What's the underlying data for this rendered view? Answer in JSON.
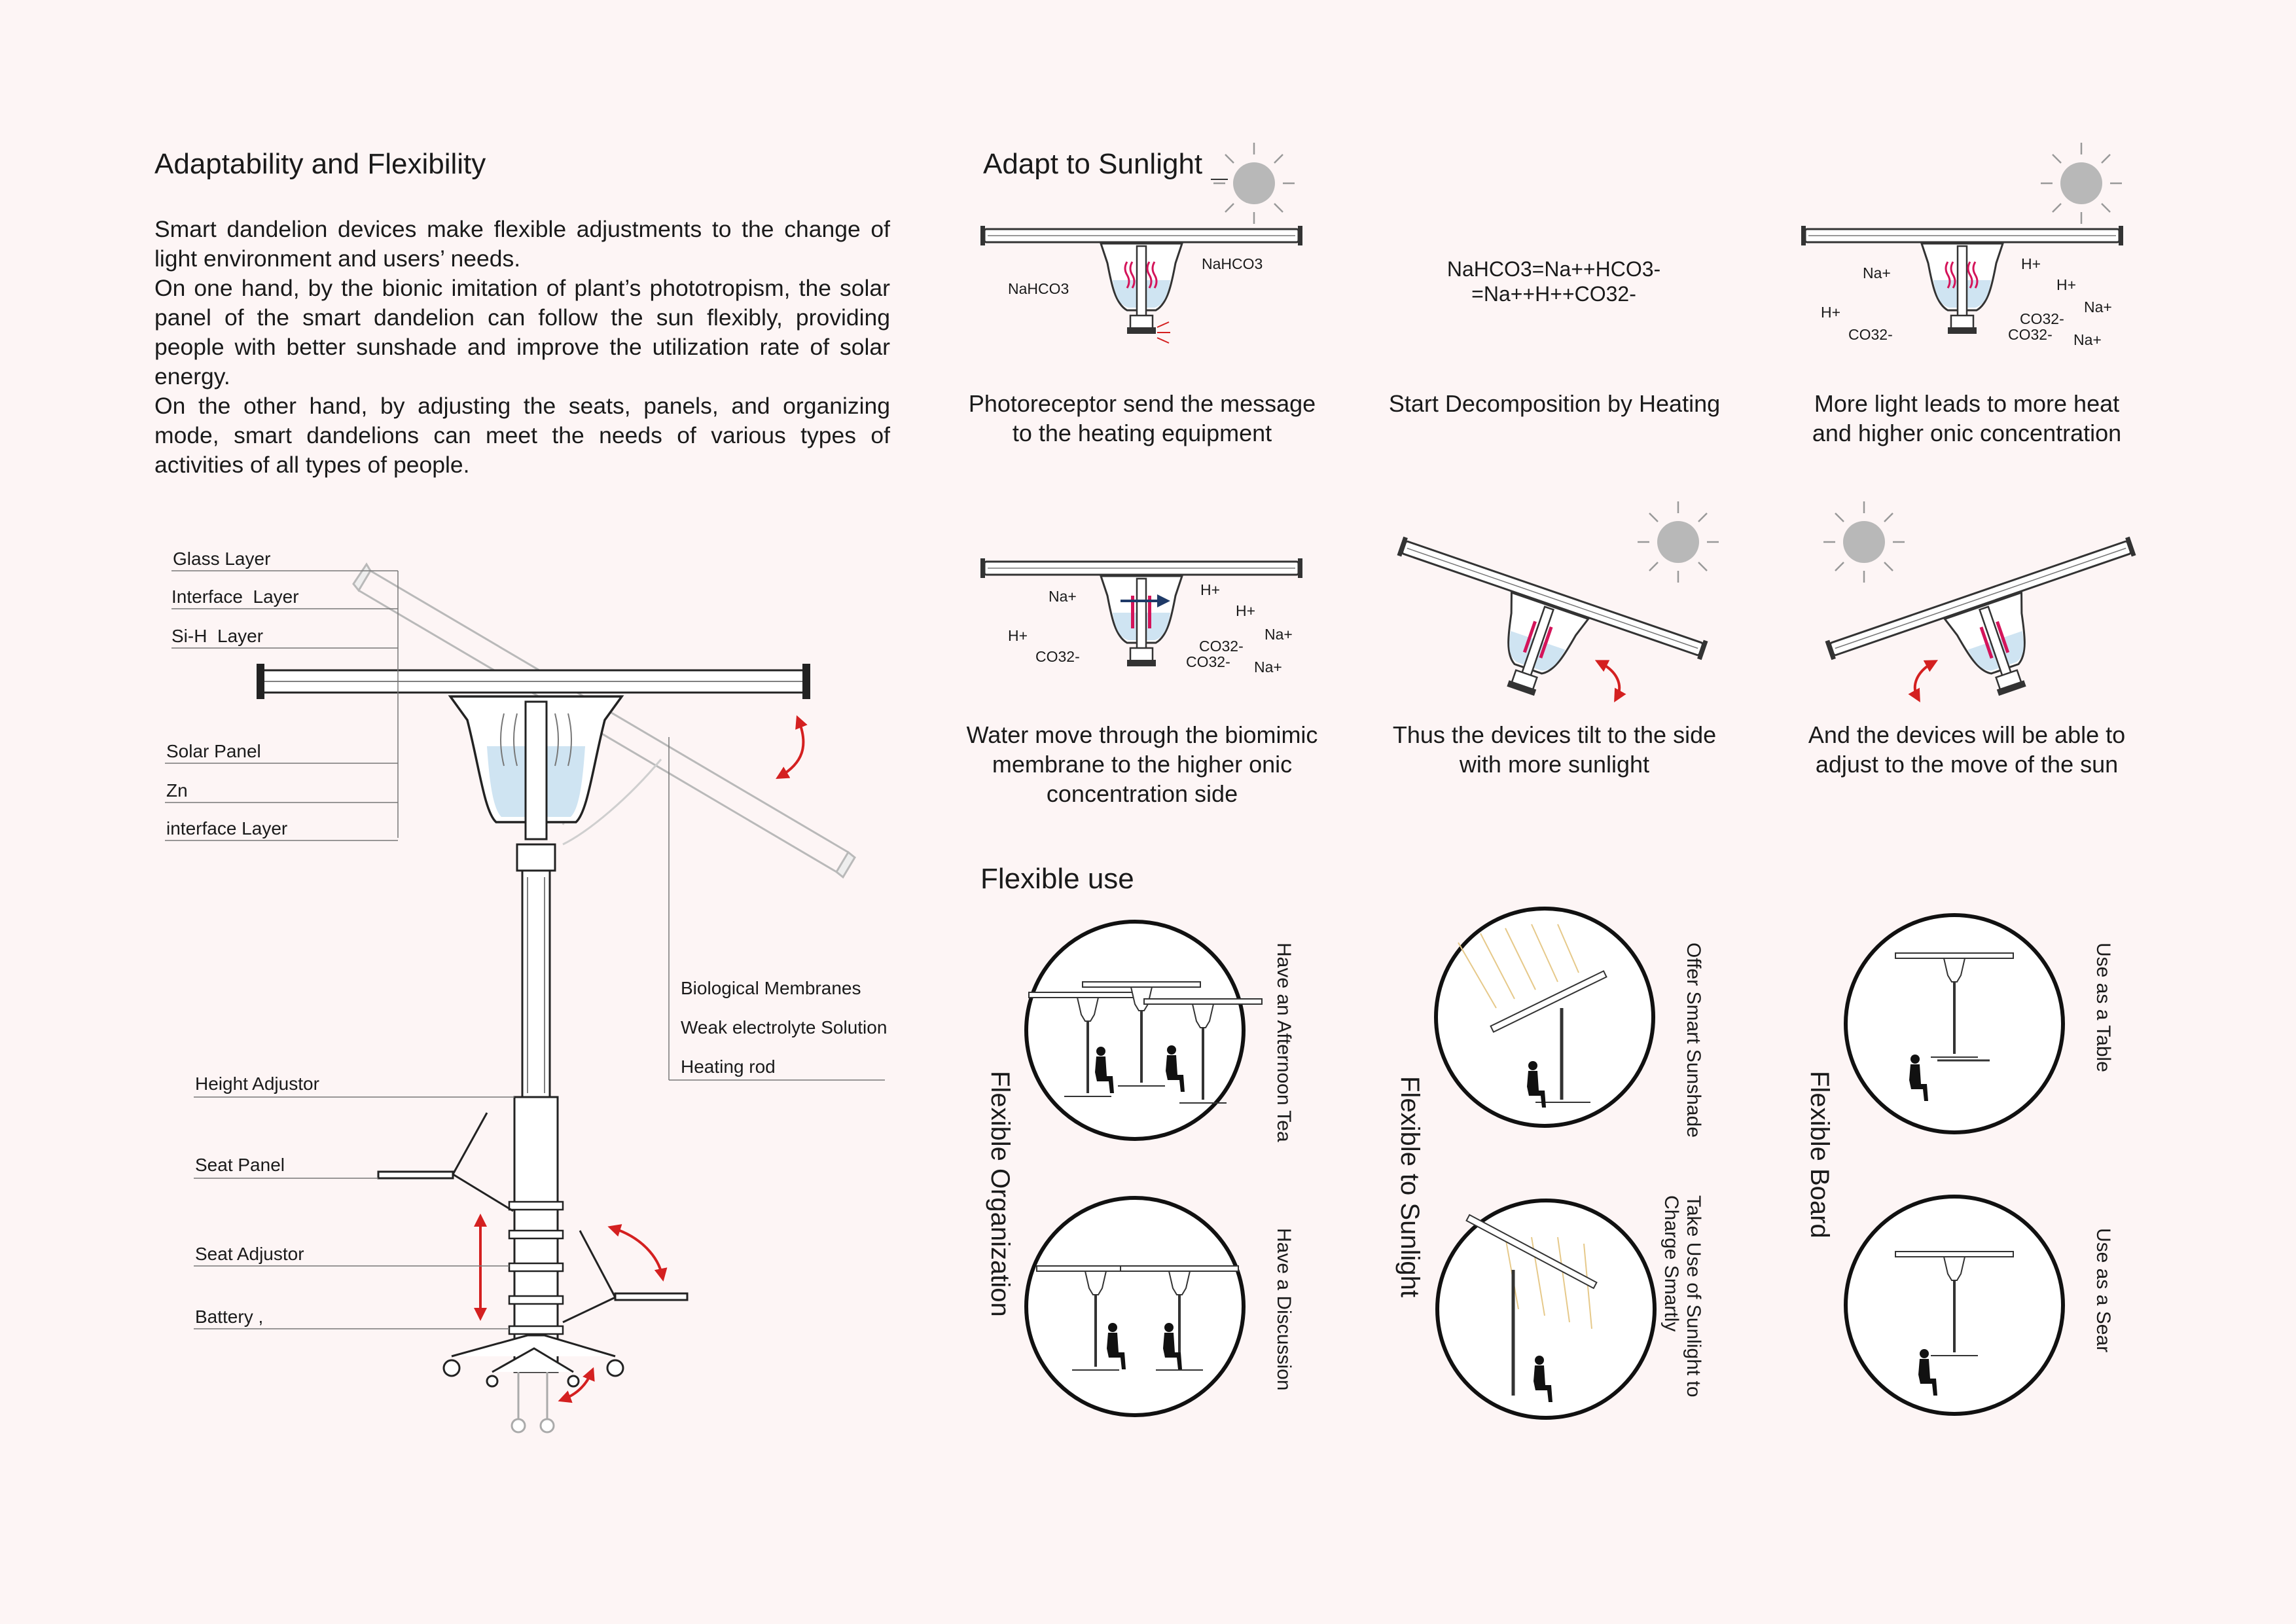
{
  "left": {
    "title": "Adaptability and Flexibility",
    "paragraphs": [
      "Smart dandelion devices make flexible adjustments to the change of light environment and users’ needs.",
      "On one hand, by the bionic imitation of plant’s phototropism, the solar panel of the smart dandelion can follow the sun flexibly, providing people with better sunshade and improve the utilization rate of solar energy.",
      "On the other hand, by adjusting the seats, panels, and organizing mode, smart dandelions can meet the needs of various types of activities of all types of people."
    ],
    "labels_top": [
      "Glass Layer",
      "Interface  Layer",
      "Si-H  Layer"
    ],
    "labels_mid": [
      "Solar Panel",
      "Zn",
      "interface Layer"
    ],
    "labels_right": [
      "Biological Membranes",
      "Weak electrolyte Solution",
      "Heating rod"
    ],
    "labels_bottom": [
      "Height Adjustor",
      "Seat Panel",
      "Seat Adjustor",
      "Battery ,"
    ]
  },
  "sunlight": {
    "title": "Adapt to Sunlight",
    "panels": [
      {
        "caption": "Photoreceptor send the message\nto the heating equipment",
        "chem": [
          "NaHCO3",
          "NaHCO3"
        ]
      },
      {
        "caption": "Start Decomposition by Heating",
        "equation": "NaHCO3=Na++HCO3-\n=Na++H++CO32-"
      },
      {
        "caption": "More light leads to more heat\nand higher onic concentration",
        "chem": [
          "Na+",
          "H+",
          "H+",
          "Na+",
          "H+",
          "CO32-",
          "CO32-",
          "CO32-",
          "Na+"
        ]
      },
      {
        "caption": "Water move through the biomimic\nmembrane to the higher onic\nconcentration side",
        "chem": [
          "Na+",
          "H+",
          "H+",
          "H+",
          "Na+",
          "CO32-",
          "CO32-",
          "CO32-",
          "Na+"
        ]
      },
      {
        "caption": "Thus the devices tilt to the side\nwith more sunlight"
      },
      {
        "caption": "And the devices will be able to\nadjust to the move of the sun"
      }
    ]
  },
  "flexible": {
    "title": "Flexible use",
    "groups": [
      {
        "title": "Flexible Organization",
        "top": "Have an Afternoon Tea",
        "bottom": "Have a Discussion"
      },
      {
        "title": "Flexible to Sunlight",
        "top": "Offer Smart Sunshade",
        "bottom": "Take Use of Sunlight to Charge Smartly"
      },
      {
        "title": "Flexible Board",
        "top": "Use as a Table",
        "bottom": "Use as a Sear"
      }
    ]
  },
  "colors": {
    "background": "#fdf5f5",
    "accent_red": "#d42020",
    "sun": "#b8b8b8",
    "heating_rod": "#d4145a",
    "water": "#cfe4f2"
  }
}
